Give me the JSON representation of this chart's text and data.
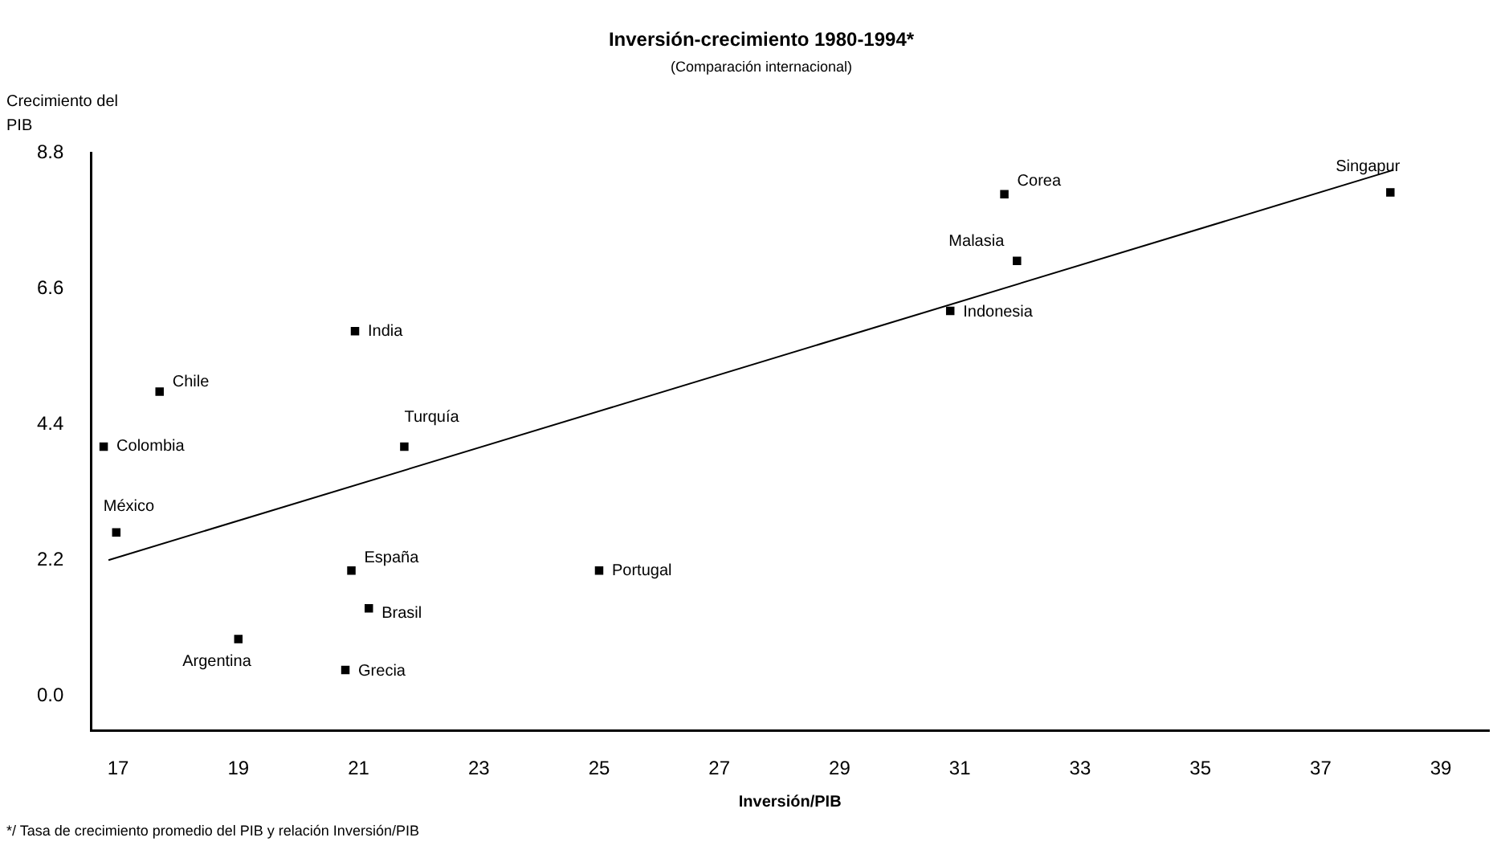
{
  "chart_data": {
    "type": "scatter",
    "title": "Inversión-crecimiento 1980-1994*",
    "subtitle": "(Comparación internacional)",
    "xlabel": "Inversión/PIB",
    "ylabel": "Crecimiento del PIB",
    "xlim": [
      16.55,
      39.8
    ],
    "xticks": [
      17,
      19,
      21,
      23,
      25,
      27,
      29,
      31,
      33,
      35,
      37,
      39
    ],
    "ylim": [
      -0.56,
      8.8
    ],
    "yticks": [
      {
        "value": 0,
        "label": "0.0"
      },
      2.2,
      4.4,
      6.6,
      8.8
    ],
    "grid": false,
    "legend": false,
    "marker": "square",
    "series": [
      {
        "color": "#000000",
        "x": [
          16.76,
          16.97,
          17.69,
          20.94,
          21.76,
          20.88,
          21.17,
          20.78,
          19.0,
          25.0,
          30.84,
          31.74,
          31.95,
          38.16
        ],
        "values": [
          4.04,
          2.65,
          4.93,
          5.91,
          4.04,
          2.03,
          1.42,
          0.42,
          0.92,
          2.03,
          6.24,
          8.13,
          7.05,
          8.16
        ]
      },
      {
        "type": "line",
        "color": "#000000",
        "marker": "none",
        "line_style": "solid",
        "x": [
          16.84,
          38.2
        ],
        "values": [
          2.2,
          8.52
        ]
      }
    ],
    "annotations": [
      {
        "text": "Colombia",
        "x": 16.76,
        "y": 4.04
      },
      {
        "text": "México",
        "x": 16.97,
        "y": 2.65
      },
      {
        "text": "Chile",
        "x": 17.69,
        "y": 4.93
      },
      {
        "text": "India",
        "x": 20.94,
        "y": 5.91
      },
      {
        "text": "Turquía",
        "x": 21.76,
        "y": 4.04
      },
      {
        "text": "España",
        "x": 20.88,
        "y": 2.03
      },
      {
        "text": "Brasil",
        "x": 21.17,
        "y": 1.42
      },
      {
        "text": "Grecia",
        "x": 20.78,
        "y": 0.42
      },
      {
        "text": "Argentina",
        "x": 19.0,
        "y": 0.92
      },
      {
        "text": "Portugal",
        "x": 25.0,
        "y": 2.03
      },
      {
        "text": "Indonesia",
        "x": 30.84,
        "y": 6.24
      },
      {
        "text": "Corea",
        "x": 31.74,
        "y": 8.13
      },
      {
        "text": "Malasia",
        "x": 31.95,
        "y": 7.05
      },
      {
        "text": "Singapur",
        "x": 38.16,
        "y": 8.16
      },
      "*/ Tasa de crecimiento promedio del PIB y relación Inversión/PIB"
    ]
  }
}
